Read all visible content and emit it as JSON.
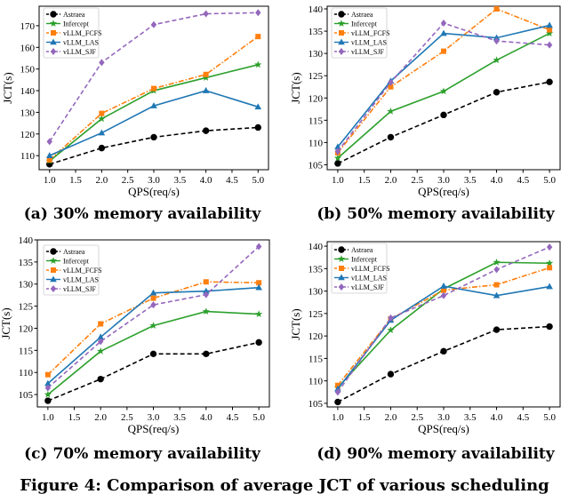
{
  "series_styles": [
    {
      "name": "Astraea",
      "color": "#000000",
      "marker": "circle",
      "dash": "dashed"
    },
    {
      "name": "Infercept",
      "color": "#2ca02c",
      "marker": "star",
      "dash": "solid"
    },
    {
      "name": "vLLM_FCFS",
      "color": "#ff7f0e",
      "marker": "square",
      "dash": "dashdot"
    },
    {
      "name": "vLLM_LAS",
      "color": "#1f77b4",
      "marker": "triangle",
      "dash": "solid"
    },
    {
      "name": "vLLM_SJF",
      "color": "#9467bd",
      "marker": "diamond",
      "dash": "dashed"
    }
  ],
  "chart_data": [
    {
      "type": "line",
      "caption": "(a) 30% memory availability",
      "xlabel": "QPS(req/s)",
      "ylabel": "JCT(s)",
      "x": [
        1.0,
        2.0,
        3.0,
        4.0,
        5.0
      ],
      "xticks": [
        "1.0",
        "1.5",
        "2.0",
        "2.5",
        "3.0",
        "3.5",
        "4.0",
        "4.5",
        "5.0"
      ],
      "xlim": [
        0.8,
        5.2
      ],
      "ylim": [
        103.5,
        179
      ],
      "yticks": [
        110,
        120,
        130,
        140,
        150,
        160,
        170
      ],
      "series": [
        {
          "name": "Astraea",
          "values": [
            106,
            113.5,
            118.5,
            121.5,
            123
          ]
        },
        {
          "name": "Infercept",
          "values": [
            107.5,
            127,
            140,
            146,
            152
          ]
        },
        {
          "name": "vLLM_FCFS",
          "values": [
            108,
            129.5,
            141,
            147.5,
            165
          ]
        },
        {
          "name": "vLLM_LAS",
          "values": [
            110,
            120.5,
            133,
            140,
            132.5
          ]
        },
        {
          "name": "vLLM_SJF",
          "values": [
            116.5,
            153,
            170.5,
            175.5,
            176
          ]
        }
      ]
    },
    {
      "type": "line",
      "caption": "(b) 50% memory availability",
      "xlabel": "QPS(req/s)",
      "ylabel": "JCT(s)",
      "x": [
        1.0,
        2.0,
        3.0,
        4.0,
        5.0
      ],
      "xticks": [
        "1.0",
        "1.5",
        "2.0",
        "2.5",
        "3.0",
        "3.5",
        "4.0",
        "4.5",
        "5.0"
      ],
      "xlim": [
        0.8,
        5.2
      ],
      "ylim": [
        103.9,
        140.6
      ],
      "yticks": [
        105,
        110,
        115,
        120,
        125,
        130,
        135,
        140
      ],
      "series": [
        {
          "name": "Astraea",
          "values": [
            105.3,
            111.2,
            116.2,
            121.3,
            123.6
          ]
        },
        {
          "name": "Infercept",
          "values": [
            106.5,
            117,
            121.5,
            128.5,
            134.5
          ]
        },
        {
          "name": "vLLM_FCFS",
          "values": [
            107.7,
            122.5,
            130.5,
            140,
            135.3
          ]
        },
        {
          "name": "vLLM_LAS",
          "values": [
            109,
            123.8,
            134.5,
            133.5,
            136.3
          ]
        },
        {
          "name": "vLLM_SJF",
          "values": [
            108,
            123.5,
            136.8,
            132.8,
            131.9
          ]
        }
      ]
    },
    {
      "type": "line",
      "caption": "(c) 70% memory availability",
      "xlabel": "QPS(req/s)",
      "ylabel": "JCT(s)",
      "x": [
        1.0,
        2.0,
        3.0,
        4.0,
        5.0
      ],
      "xticks": [
        "1.0",
        "1.5",
        "2.0",
        "2.5",
        "3.0",
        "3.5",
        "4.0",
        "4.5",
        "5.0"
      ],
      "xlim": [
        0.8,
        5.2
      ],
      "ylim": [
        102.2,
        140
      ],
      "yticks": [
        105,
        110,
        115,
        120,
        125,
        130,
        135,
        140
      ],
      "series": [
        {
          "name": "Astraea",
          "values": [
            103.6,
            108.5,
            114.2,
            114.2,
            116.8
          ]
        },
        {
          "name": "Infercept",
          "values": [
            105,
            114.8,
            120.6,
            123.8,
            123.2
          ]
        },
        {
          "name": "vLLM_FCFS",
          "values": [
            109.5,
            121,
            126.8,
            130.5,
            130.3
          ]
        },
        {
          "name": "vLLM_LAS",
          "values": [
            107.5,
            118,
            128,
            128.4,
            129.2
          ]
        },
        {
          "name": "vLLM_SJF",
          "values": [
            106.5,
            117,
            125.3,
            127.6,
            138.5
          ]
        }
      ]
    },
    {
      "type": "line",
      "caption": "(d) 90% memory availability",
      "xlabel": "QPS(req/s)",
      "ylabel": "JCT(s)",
      "x": [
        1.0,
        2.0,
        3.0,
        4.0,
        5.0
      ],
      "xticks": [
        "1.0",
        "1.5",
        "2.0",
        "2.5",
        "3.0",
        "3.5",
        "4.0",
        "4.5",
        "5.0"
      ],
      "xlim": [
        0.8,
        5.2
      ],
      "ylim": [
        104.2,
        141
      ],
      "yticks": [
        105,
        110,
        115,
        120,
        125,
        130,
        135,
        140
      ],
      "series": [
        {
          "name": "Astraea",
          "values": [
            105.3,
            111.5,
            116.6,
            121.4,
            122.1
          ]
        },
        {
          "name": "Infercept",
          "values": [
            108.5,
            121.3,
            130.5,
            136.4,
            136.2
          ]
        },
        {
          "name": "vLLM_FCFS",
          "values": [
            109,
            123.8,
            130.2,
            131.4,
            135.2
          ]
        },
        {
          "name": "vLLM_LAS",
          "values": [
            108.2,
            123.5,
            131.1,
            129,
            131
          ]
        },
        {
          "name": "vLLM_SJF",
          "values": [
            107.5,
            124,
            129,
            134.8,
            139.8
          ]
        }
      ]
    }
  ],
  "figure_caption": "Figure 4: Comparison of average JCT of various scheduling"
}
